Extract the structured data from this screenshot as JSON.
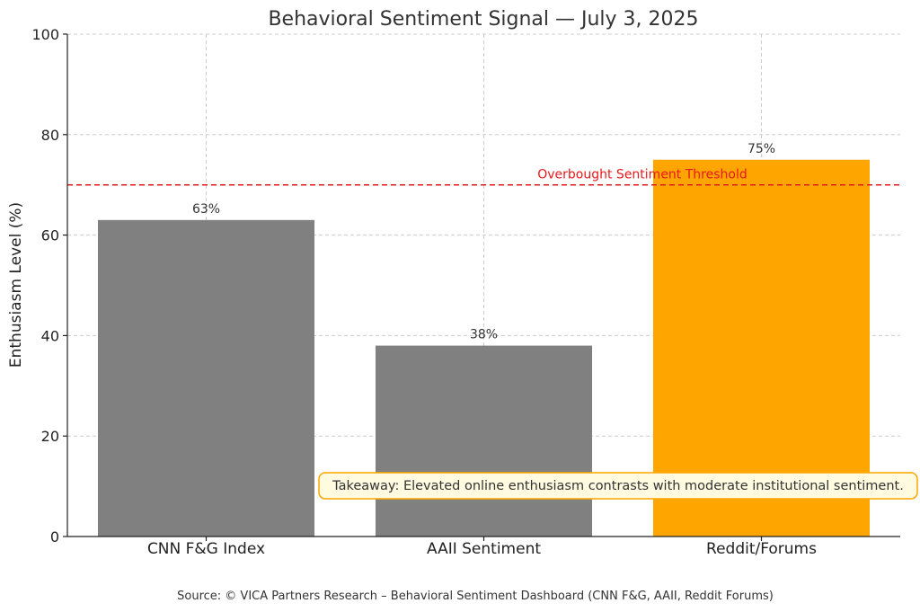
{
  "chart_data": {
    "type": "bar",
    "title": "Behavioral Sentiment Signal — July 3, 2025",
    "xlabel": "",
    "ylabel": "Enthusiasm Level (%)",
    "categories": [
      "CNN F&G Index",
      "AAII Sentiment",
      "Reddit/Forums"
    ],
    "values": [
      63,
      38,
      75
    ],
    "data_labels": [
      "63%",
      "38%",
      "75%"
    ],
    "colors": [
      "#808080",
      "#808080",
      "#ffa500"
    ],
    "ylim": [
      0,
      100
    ],
    "yticks": [
      0,
      20,
      40,
      60,
      80,
      100
    ],
    "grid": true,
    "threshold": {
      "value": 70,
      "label": "Overbought Sentiment Threshold",
      "color": "#e41a1c"
    },
    "annotation": {
      "text": "Takeaway: Elevated online enthusiasm contrasts with moderate institutional sentiment.",
      "border_color": "#ffa500",
      "fill_color": "#fffbe0"
    },
    "source": "Source: © VICA Partners Research – Behavioral Sentiment Dashboard (CNN F&G, AAII, Reddit Forums)"
  }
}
